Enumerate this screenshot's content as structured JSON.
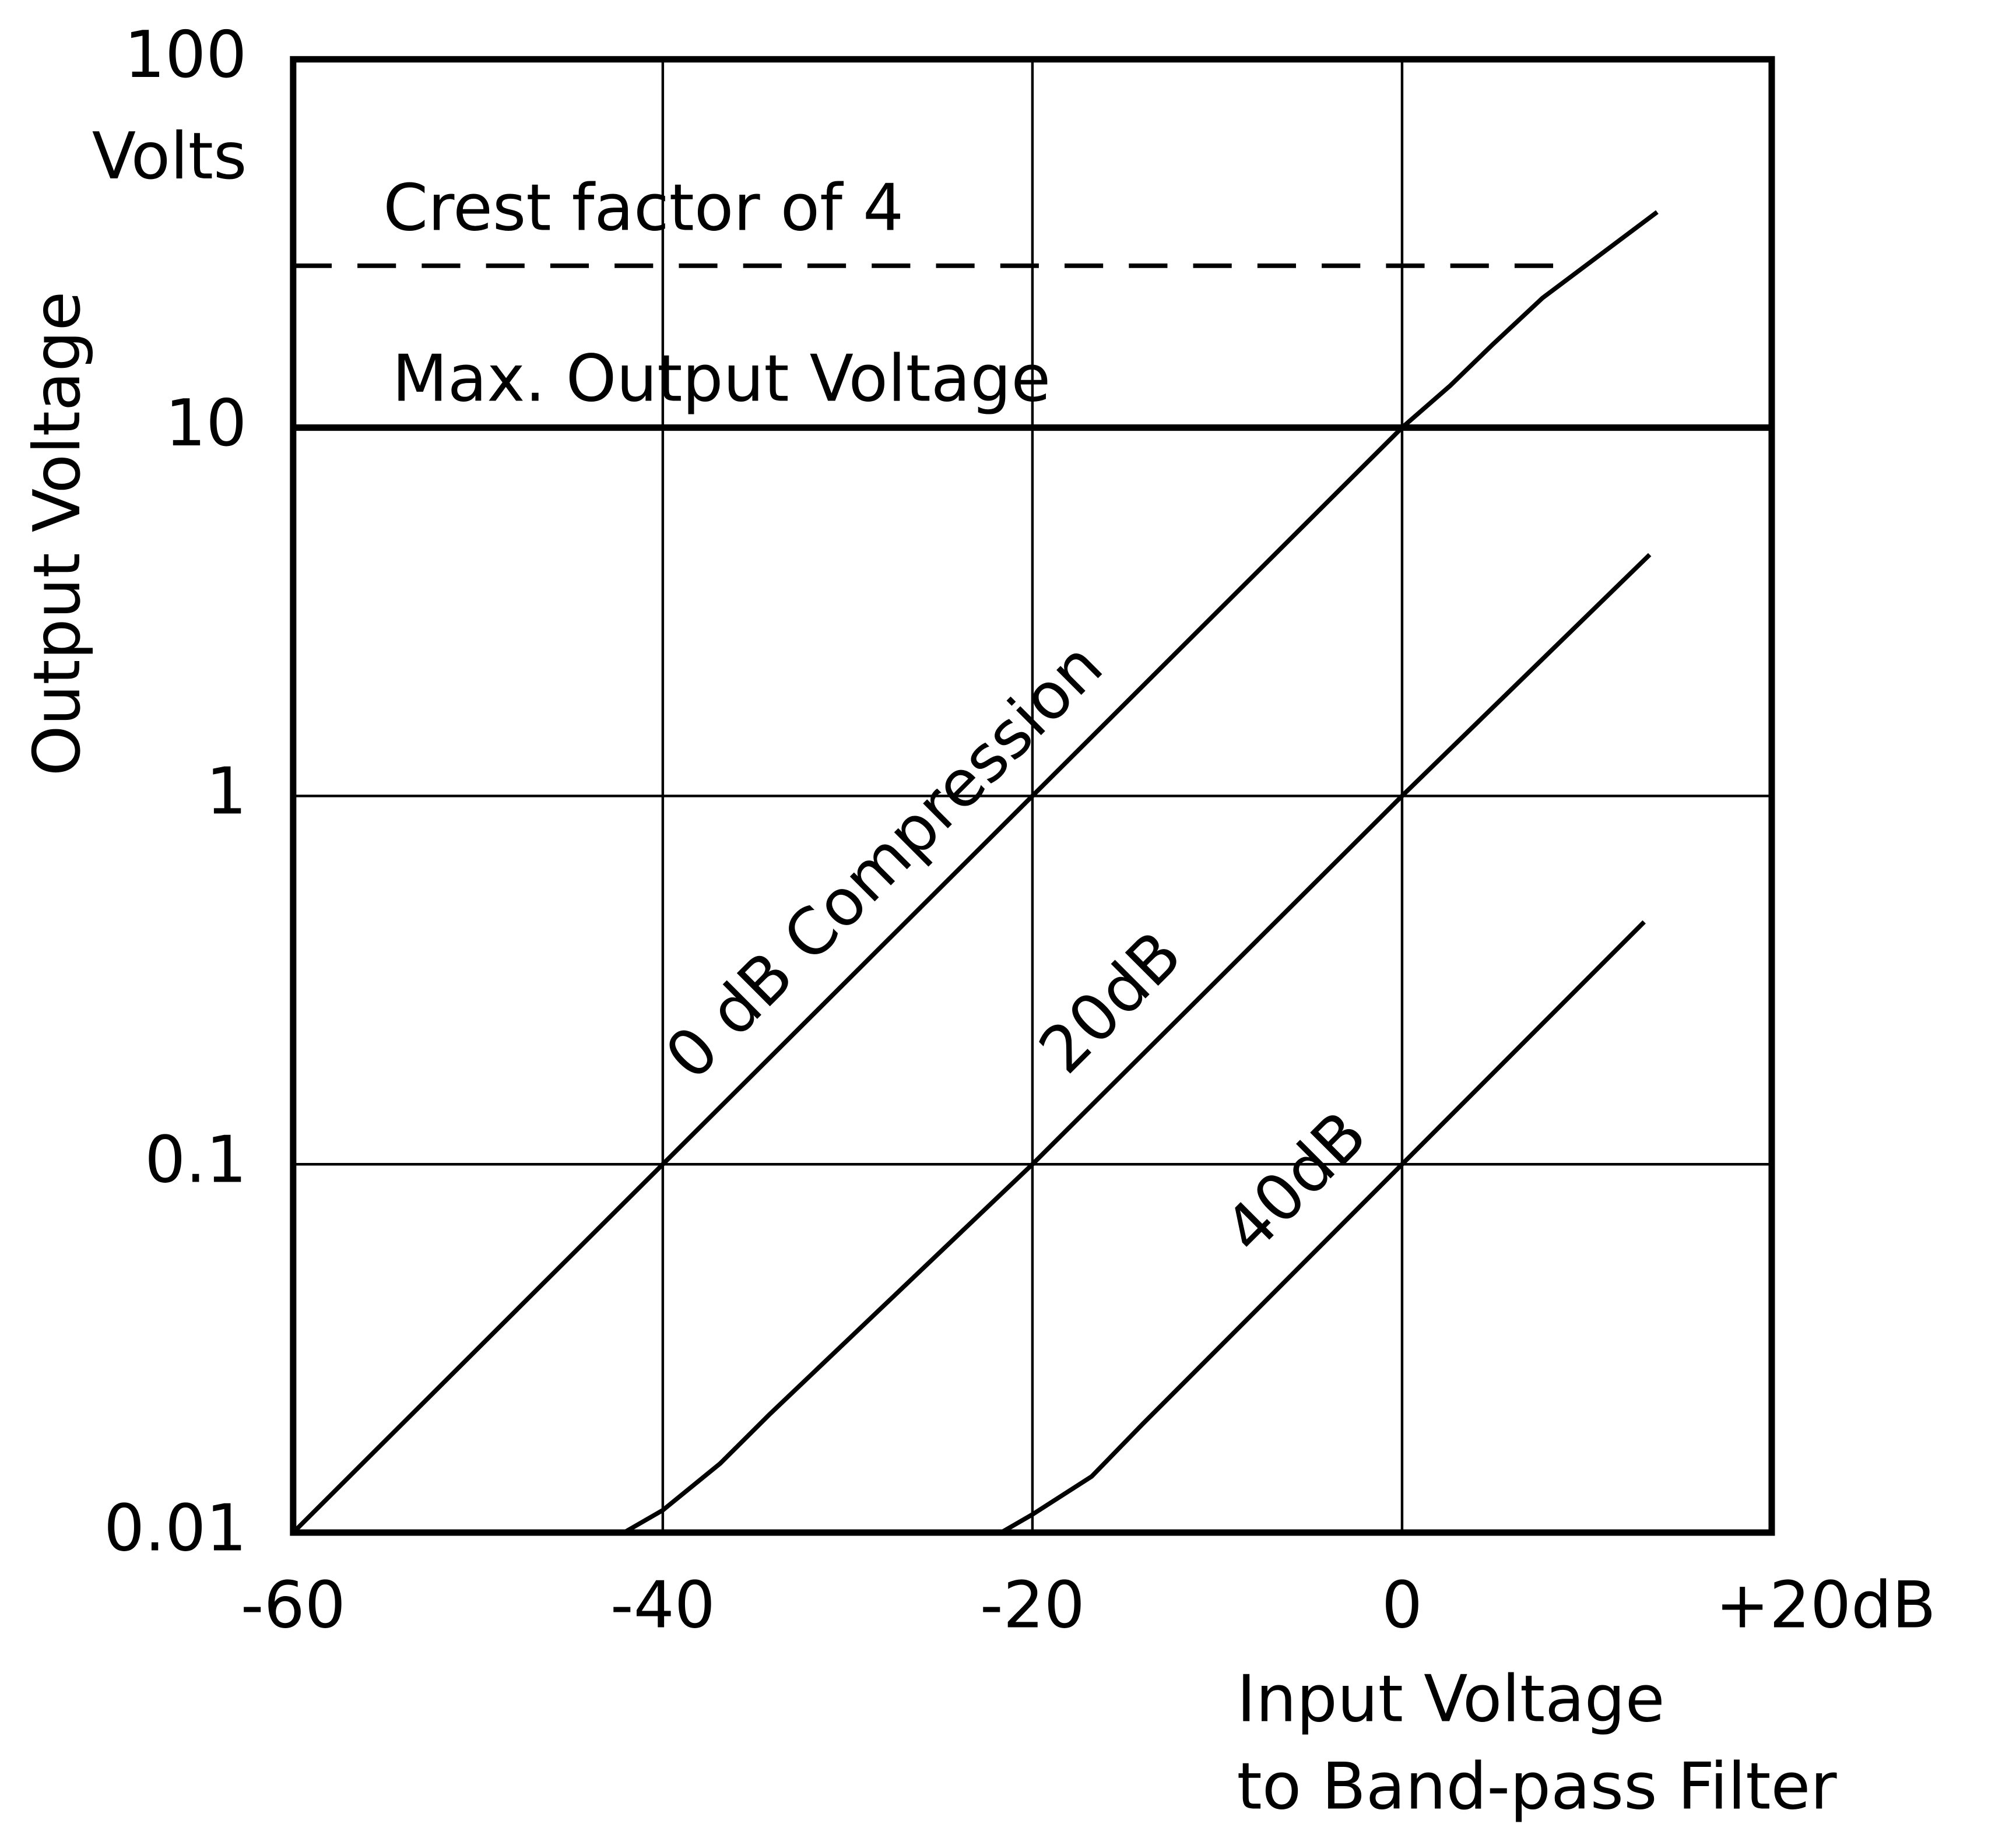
{
  "chart_data": {
    "type": "line",
    "ylabel": "Output Voltage",
    "y_unit": "Volts",
    "xlabel": [
      "Input Voltage",
      "to Band-pass Filter"
    ],
    "xlim": [
      -60,
      20
    ],
    "xticks": [
      -60,
      -40,
      -20,
      0,
      {
        "value": 20,
        "label": "+20dB"
      }
    ],
    "ylim": [
      0.01,
      100
    ],
    "yticks": [
      0.01,
      0.1,
      1,
      10,
      100
    ],
    "ylog": true,
    "grid": true,
    "series": [
      {
        "name": "0 dB Compression",
        "color": "#000000",
        "x": [
          -60,
          -40,
          -20,
          0,
          2.6,
          4.9,
          7.6,
          13.8
        ],
        "values": [
          0.01,
          0.1,
          1,
          10,
          13,
          16.8,
          22.5,
          38.5
        ]
      },
      {
        "name": "20dB",
        "color": "#000000",
        "x": [
          -42.1,
          -40,
          -36.9,
          -34.2,
          -20,
          0,
          13.4
        ],
        "values": [
          0.01,
          0.0115,
          0.0154,
          0.021,
          0.1,
          1,
          4.52
        ]
      },
      {
        "name": "40dB",
        "color": "#000000",
        "x": [
          -21.7,
          -20,
          -16.8,
          -14,
          0,
          13.1
        ],
        "values": [
          0.01,
          0.0112,
          0.0142,
          0.0198,
          0.1,
          0.455
        ]
      },
      {
        "name": "Max. Output Voltage",
        "color": "#000000",
        "x": [
          -60,
          20
        ],
        "values": [
          10,
          10
        ]
      },
      {
        "name": "Crest factor of 4",
        "color": "#000000",
        "dashed": true,
        "x": [
          -60,
          8.2
        ],
        "values": [
          27.5,
          27.5
        ]
      }
    ]
  }
}
